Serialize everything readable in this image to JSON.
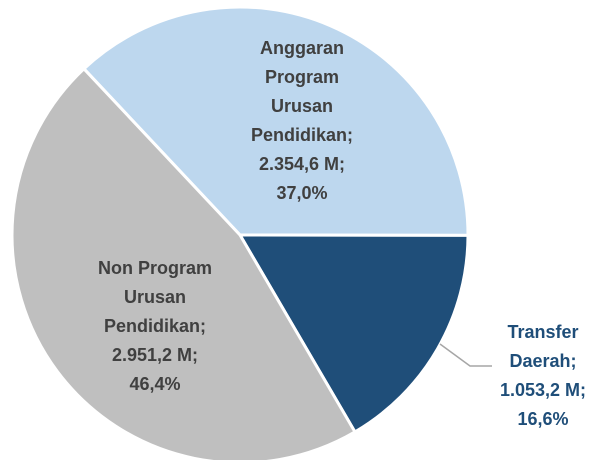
{
  "chart_data": {
    "type": "pie",
    "categories": [
      "Anggaran Program Urusan Pendidikan;",
      "Transfer Daerah;",
      "Non Program Urusan Pendidikan;"
    ],
    "values": [
      2354.6,
      1053.2,
      2951.2
    ],
    "value_labels": [
      "2.354,6 M;",
      "1.053,2 M;",
      "2.951,2 M;"
    ],
    "percentages": [
      37.0,
      16.6,
      46.4
    ],
    "percentage_labels": [
      "37,0%",
      "16,6%",
      "46,4%"
    ],
    "colors": [
      "#bdd7ee",
      "#1f4e79",
      "#bfbfbf"
    ],
    "label_colors": [
      "#404040",
      "#1f4e79",
      "#404040"
    ]
  }
}
